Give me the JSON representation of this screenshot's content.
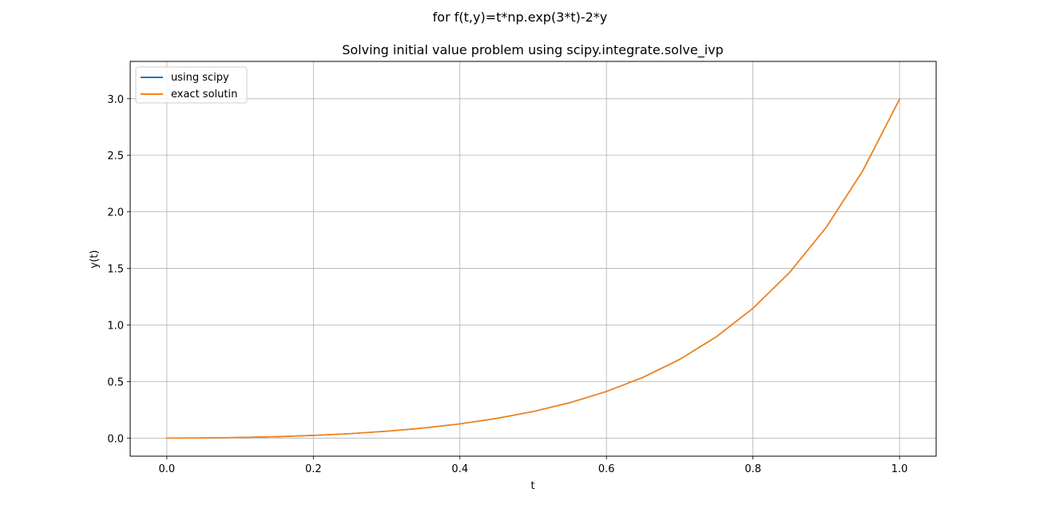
{
  "figure": {
    "suptitle": "for f(t,y)=t*np.exp(3*t)-2*y"
  },
  "chart_data": {
    "type": "line",
    "title": "Solving initial value problem using scipy.integrate.solve_ivp",
    "xlabel": "t",
    "ylabel": "y(t)",
    "xlim": [
      -0.05,
      1.05
    ],
    "ylim": [
      -0.16,
      3.33
    ],
    "xticks": [
      0.0,
      0.2,
      0.4,
      0.6,
      0.8,
      1.0
    ],
    "xtick_labels": [
      "0.0",
      "0.2",
      "0.4",
      "0.6",
      "0.8",
      "1.0"
    ],
    "yticks": [
      0.0,
      0.5,
      1.0,
      1.5,
      2.0,
      2.5,
      3.0
    ],
    "ytick_labels": [
      "0.0",
      "0.5",
      "1.0",
      "1.5",
      "2.0",
      "2.5",
      "3.0"
    ],
    "grid": true,
    "legend_position": "upper left",
    "x": [
      0.0,
      0.05,
      0.1,
      0.15,
      0.2,
      0.25,
      0.3,
      0.35,
      0.4,
      0.45,
      0.5,
      0.55,
      0.6,
      0.65,
      0.7,
      0.75,
      0.8,
      0.85,
      0.9,
      0.95,
      1.0
    ],
    "series": [
      {
        "name": "using scipy",
        "color": "#1f77b4",
        "values": [
          0.0,
          0.0013,
          0.0053,
          0.0125,
          0.0236,
          0.0392,
          0.0605,
          0.0887,
          0.1256,
          0.1734,
          0.2347,
          0.3127,
          0.4118,
          0.5373,
          0.6958,
          0.8955,
          1.1473,
          1.4644,
          1.8633,
          2.3649,
          2.9953
        ]
      },
      {
        "name": "exact solutin",
        "color": "#ff7f0e",
        "values": [
          0.0,
          0.0013,
          0.0053,
          0.0125,
          0.0236,
          0.0392,
          0.0605,
          0.0887,
          0.1256,
          0.1734,
          0.2347,
          0.3127,
          0.4118,
          0.5373,
          0.6958,
          0.8955,
          1.1473,
          1.4644,
          1.8633,
          2.3649,
          2.9953
        ]
      }
    ]
  }
}
